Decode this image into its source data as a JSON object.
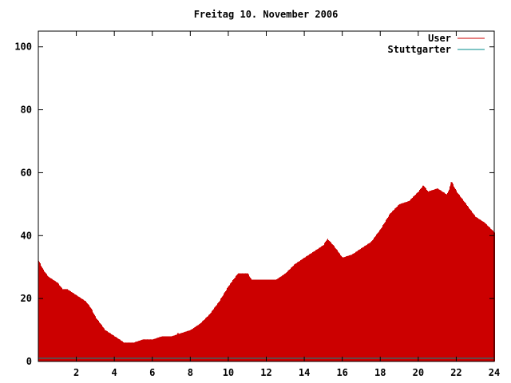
{
  "chart_data": {
    "type": "bar",
    "title": "Freitag 10. November 2006",
    "xlabel": "",
    "ylabel": "",
    "xlim": [
      0,
      24
    ],
    "ylim": [
      0,
      105
    ],
    "x_ticks": [
      2,
      4,
      6,
      8,
      10,
      12,
      14,
      16,
      18,
      20,
      22,
      24
    ],
    "y_ticks": [
      0,
      20,
      40,
      60,
      80,
      100
    ],
    "grid": false,
    "legend_position": "top-right",
    "series": [
      {
        "name": "User",
        "color": "#cc0000",
        "anchors": [
          [
            0.0,
            32
          ],
          [
            0.25,
            29
          ],
          [
            0.5,
            27
          ],
          [
            0.75,
            26
          ],
          [
            1.0,
            25
          ],
          [
            1.25,
            23
          ],
          [
            1.5,
            23
          ],
          [
            1.75,
            22
          ],
          [
            2.0,
            21
          ],
          [
            2.25,
            20
          ],
          [
            2.5,
            19
          ],
          [
            2.75,
            17
          ],
          [
            3.0,
            14
          ],
          [
            3.25,
            12
          ],
          [
            3.5,
            10
          ],
          [
            3.75,
            9
          ],
          [
            4.0,
            8
          ],
          [
            4.25,
            7
          ],
          [
            4.5,
            6
          ],
          [
            5.0,
            6
          ],
          [
            5.5,
            7
          ],
          [
            6.0,
            7
          ],
          [
            6.5,
            8
          ],
          [
            7.0,
            8
          ],
          [
            7.5,
            9
          ],
          [
            8.0,
            10
          ],
          [
            8.5,
            12
          ],
          [
            9.0,
            15
          ],
          [
            9.5,
            19
          ],
          [
            10.0,
            24
          ],
          [
            10.5,
            28
          ],
          [
            11.0,
            28
          ],
          [
            11.2,
            26
          ],
          [
            11.5,
            26
          ],
          [
            12.0,
            26
          ],
          [
            12.5,
            26
          ],
          [
            13.0,
            28
          ],
          [
            13.5,
            31
          ],
          [
            14.0,
            33
          ],
          [
            14.5,
            35
          ],
          [
            15.0,
            37
          ],
          [
            15.2,
            39
          ],
          [
            15.5,
            37
          ],
          [
            16.0,
            33
          ],
          [
            16.5,
            34
          ],
          [
            17.0,
            36
          ],
          [
            17.5,
            38
          ],
          [
            18.0,
            42
          ],
          [
            18.5,
            47
          ],
          [
            19.0,
            50
          ],
          [
            19.5,
            51
          ],
          [
            20.0,
            54
          ],
          [
            20.25,
            56
          ],
          [
            20.5,
            54
          ],
          [
            21.0,
            55
          ],
          [
            21.5,
            53
          ],
          [
            21.75,
            57
          ],
          [
            22.0,
            54
          ],
          [
            22.5,
            50
          ],
          [
            23.0,
            46
          ],
          [
            23.5,
            44
          ],
          [
            24.0,
            41
          ]
        ],
        "highlight_x": [
          2.45,
          7.35,
          11.95,
          21.75
        ],
        "highlight_values": [
          19,
          9,
          26,
          57
        ]
      },
      {
        "name": "Stuttgarter",
        "color": "#008b8b",
        "value": 1
      }
    ]
  }
}
